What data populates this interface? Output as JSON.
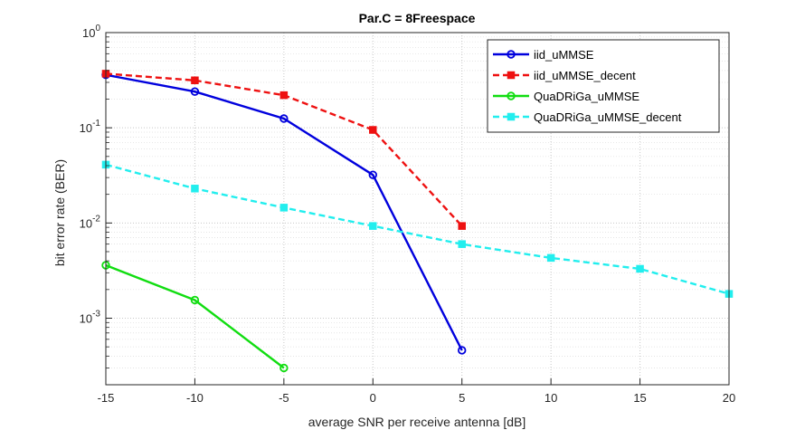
{
  "chart_data": {
    "type": "line",
    "title": "Par.C = 8Freespace",
    "xlabel": "average SNR per receive antenna [dB]",
    "ylabel": "bit error rate (BER)",
    "xlim": [
      -15,
      20
    ],
    "ylim": [
      0.0002,
      1
    ],
    "yscale": "log",
    "grid": true,
    "minor_grid": true,
    "legend_position": "top-right",
    "xticks": [
      -15,
      -10,
      -5,
      0,
      5,
      10,
      15,
      20
    ],
    "xtick_labels": [
      "-15",
      "-10",
      "-5",
      "0",
      "5",
      "10",
      "15",
      "20"
    ],
    "yticks": [
      0.001,
      0.01,
      0.1,
      1
    ],
    "ytick_labels": [
      {
        "base": "10",
        "exp": "-3"
      },
      {
        "base": "10",
        "exp": "-2"
      },
      {
        "base": "10",
        "exp": "-1"
      },
      {
        "base": "10",
        "exp": "0"
      }
    ],
    "series": [
      {
        "name": "iid_uMMSE",
        "color": "#0000dd",
        "dash": "solid",
        "marker": "circle",
        "x": [
          -15,
          -10,
          -5,
          0,
          5
        ],
        "y": [
          0.36,
          0.24,
          0.125,
          0.032,
          0.00046
        ]
      },
      {
        "name": "iid_uMMSE_decent",
        "color": "#ee1111",
        "dash": "dashed",
        "marker": "square",
        "x": [
          -15,
          -10,
          -5,
          0,
          5
        ],
        "y": [
          0.37,
          0.315,
          0.22,
          0.095,
          0.0093
        ]
      },
      {
        "name": "QuaDRiGa_uMMSE",
        "color": "#11dd11",
        "dash": "solid",
        "marker": "circle",
        "x": [
          -15,
          -10,
          -5
        ],
        "y": [
          0.0036,
          0.00155,
          0.0003
        ]
      },
      {
        "name": "QuaDRiGa_uMMSE_decent",
        "color": "#22eeee",
        "dash": "dashed",
        "marker": "square",
        "x": [
          -15,
          -10,
          -5,
          0,
          5,
          10,
          15,
          20
        ],
        "y": [
          0.041,
          0.023,
          0.0145,
          0.0093,
          0.006,
          0.0043,
          0.0033,
          0.0018
        ]
      }
    ]
  }
}
